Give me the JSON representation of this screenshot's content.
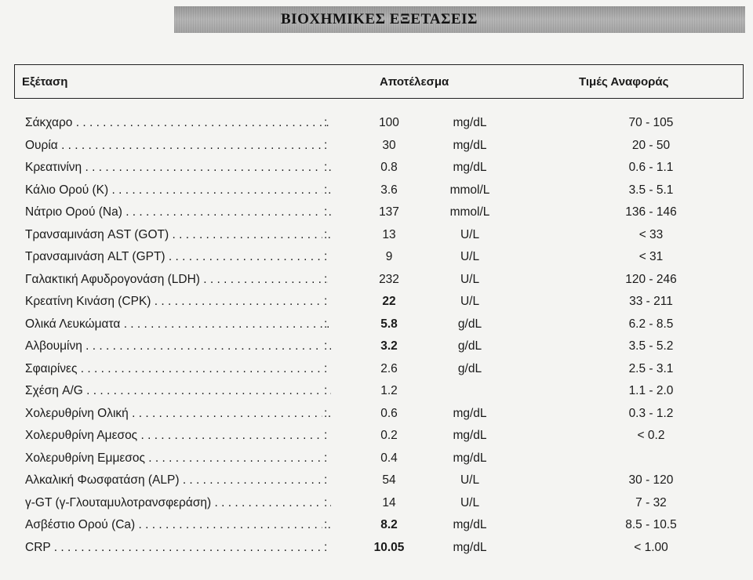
{
  "report": {
    "title": "ΒΙΟΧΗΜΙΚΕΣ ΕΞΕΤΑΣΕΙΣ"
  },
  "header": {
    "test": "Εξέταση",
    "result": "Αποτέλεσμα",
    "reference": "Τιμές Αναφοράς"
  },
  "rows": [
    {
      "name": "Σάκχαρο",
      "colon": ":",
      "value": "100",
      "unit": "mg/dL",
      "ref": "70 - 105"
    },
    {
      "name": "Ουρία",
      "colon": ":",
      "value": "30",
      "unit": "mg/dL",
      "ref": "20 - 50"
    },
    {
      "name": "Κρεατινίνη",
      "colon": ":",
      "value": "0.8",
      "unit": "mg/dL",
      "ref": "0.6 - 1.1"
    },
    {
      "name": "Κάλιο Ορού (K)",
      "colon": ":",
      "value": "3.6",
      "unit": "mmol/L",
      "ref": "3.5 - 5.1"
    },
    {
      "name": "Νάτριο Ορού (Na)",
      "colon": ":",
      "value": "137",
      "unit": "mmol/L",
      "ref": "136 - 146"
    },
    {
      "name": "Τρανσαμινάση AST (GOT)",
      "colon": ":",
      "value": "13",
      "unit": "U/L",
      "ref": "< 33"
    },
    {
      "name": "Τρανσαμινάση ALT (GPT)",
      "colon": ":",
      "value": "9",
      "unit": "U/L",
      "ref": "< 31"
    },
    {
      "name": "Γαλακτική Αφυδρογονάση (LDH)",
      "colon": ":",
      "value": "232",
      "unit": "U/L",
      "ref": "120 - 246"
    },
    {
      "name": "Κρεατίνη Κινάση (CPK)",
      "colon": ":",
      "value": "22",
      "unit": "U/L",
      "ref": "33 - 211",
      "bold": true
    },
    {
      "name": "Ολικά Λευκώματα",
      "colon": ":",
      "value": "5.8",
      "unit": "g/dL",
      "ref": "6.2 - 8.5",
      "bold": true
    },
    {
      "name": "Αλβουμίνη",
      "colon": ":",
      "value": "3.2",
      "unit": "g/dL",
      "ref": "3.5 - 5.2",
      "bold": true
    },
    {
      "name": "Σφαιρίνες",
      "colon": ":",
      "value": "2.6",
      "unit": "g/dL",
      "ref": "2.5 - 3.1"
    },
    {
      "name": "Σχέση A/G",
      "colon": ":",
      "value": "1.2",
      "unit": "",
      "ref": "1.1 - 2.0"
    },
    {
      "name": "Χολερυθρίνη Ολική",
      "colon": ":",
      "value": "0.6",
      "unit": "mg/dL",
      "ref": "0.3 - 1.2"
    },
    {
      "name": "Χολερυθρίνη Αμεσος",
      "colon": ":",
      "value": "0.2",
      "unit": "mg/dL",
      "ref": "< 0.2"
    },
    {
      "name": "Χολερυθρίνη Εμμεσος",
      "colon": ":",
      "value": "0.4",
      "unit": "mg/dL",
      "ref": ""
    },
    {
      "name": "Αλκαλική Φωσφατάση (ALP)",
      "colon": ":",
      "value": "54",
      "unit": "U/L",
      "ref": "30 - 120"
    },
    {
      "name": "γ-GT (γ-Γλουταμυλοτρανσφεράση)",
      "colon": ":",
      "value": "14",
      "unit": "U/L",
      "ref": "7 - 32"
    },
    {
      "name": "Ασβέστιο Ορού (Ca)",
      "colon": ":",
      "value": "8.2",
      "unit": "mg/dL",
      "ref": "8.5 - 10.5",
      "bold": true
    },
    {
      "name": "CRP",
      "colon": ":",
      "value": "10.05",
      "unit": "mg/dL",
      "ref": "< 1.00",
      "bold": true
    }
  ]
}
